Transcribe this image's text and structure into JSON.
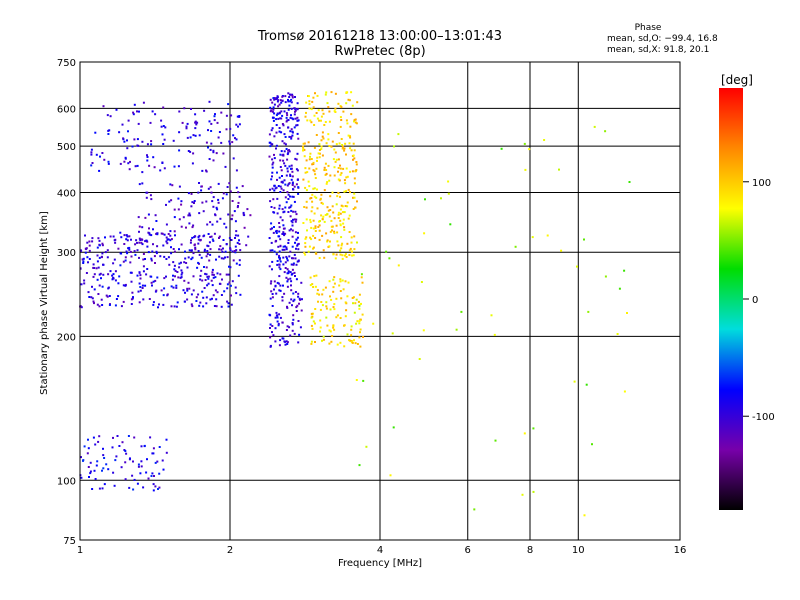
{
  "chart_data": {
    "type": "scatter",
    "title": "Tromsø 20161218 13:00:00–13:01:43",
    "subtitle": "RwPretec (8p)",
    "xlabel": "Frequency [MHz]",
    "ylabel": "Stationary phase Virtual Height [km]",
    "x_scale": "log",
    "y_scale": "log",
    "xlim": [
      1,
      16
    ],
    "ylim": [
      75,
      750
    ],
    "x_ticks": [
      1,
      2,
      4,
      6,
      8,
      10,
      16
    ],
    "y_ticks": [
      75,
      100,
      200,
      300,
      400,
      500,
      600,
      750
    ],
    "x_gridlines": [
      2,
      4,
      6,
      8,
      10
    ],
    "y_gridlines": [
      100,
      200,
      300,
      400,
      500,
      600
    ],
    "grid": true,
    "phase_stats": {
      "heading": "Phase",
      "line_o": "mean, sd,O: −99.4, 16.8",
      "line_x": "mean, sd,X:  91.8, 20.1"
    },
    "colorbar": {
      "label": "[deg]",
      "range": [
        -180,
        180
      ],
      "ticks": [
        100,
        0,
        -100
      ],
      "colormap": "rainbow",
      "colors_top_to_bottom": [
        "#ff0000",
        "#ff8800",
        "#ffff00",
        "#00dd00",
        "#00dddd",
        "#0000ff",
        "#7700aa",
        "#000000"
      ]
    },
    "clusters": [
      {
        "name": "O-trace upper band",
        "freq": [
          1.05,
          2.1
        ],
        "height": [
          440,
          620
        ],
        "phase": -95,
        "n": 150
      },
      {
        "name": "O-trace lower band",
        "freq": [
          1.0,
          2.1
        ],
        "height": [
          230,
          330
        ],
        "phase": -95,
        "n": 400
      },
      {
        "name": "O-trace mid band",
        "freq": [
          1.3,
          2.2
        ],
        "height": [
          300,
          420
        ],
        "phase": -100,
        "n": 150
      },
      {
        "name": "F-layer O cusp",
        "freq": [
          2.4,
          2.75
        ],
        "height": [
          260,
          650
        ],
        "phase": -95,
        "n": 360
      },
      {
        "name": "F-layer X cusp",
        "freq": [
          2.8,
          3.6
        ],
        "height": [
          290,
          650
        ],
        "phase": 95,
        "n": 340
      },
      {
        "name": "E-layer O echoes",
        "freq": [
          2.4,
          2.8
        ],
        "height": [
          190,
          260
        ],
        "phase": -95,
        "n": 90
      },
      {
        "name": "E-layer X echoes",
        "freq": [
          2.9,
          3.7
        ],
        "height": [
          190,
          270
        ],
        "phase": 90,
        "n": 120
      },
      {
        "name": "Low-height echoes",
        "freq": [
          1.0,
          1.5
        ],
        "height": [
          95,
          125
        ],
        "phase": -90,
        "n": 90
      },
      {
        "name": "Sporadic points",
        "freq": [
          3.5,
          13
        ],
        "height": [
          80,
          620
        ],
        "phase": 60,
        "n": 60
      }
    ]
  }
}
